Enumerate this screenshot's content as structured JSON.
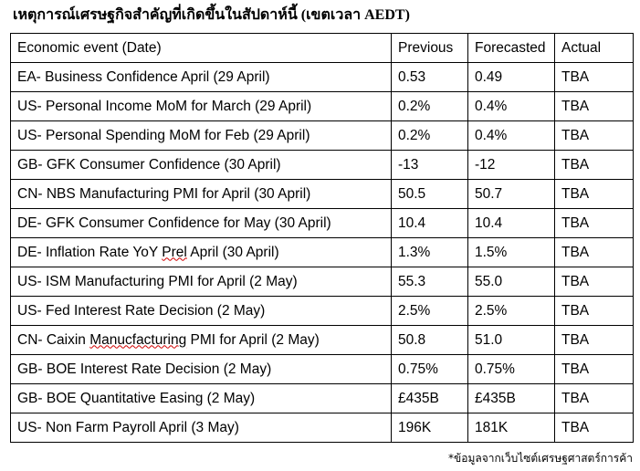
{
  "title": "เหตุการณ์เศรษฐกิจสำคัญที่เกิดขึ้นในสัปดาห์นี้ (เขตเวลา AEDT)",
  "table": {
    "headers": [
      "Economic event (Date)",
      "Previous",
      "Forecasted",
      "Actual"
    ],
    "rows": [
      {
        "event": "EA- Business Confidence April (29 April)",
        "previous": "0.53",
        "forecasted": "0.49",
        "actual": "TBA"
      },
      {
        "event": "US- Personal Income MoM for March (29 April)",
        "previous": "0.2%",
        "forecasted": "0.4%",
        "actual": "TBA"
      },
      {
        "event": "US- Personal Spending MoM for Feb (29 April)",
        "previous": "0.2%",
        "forecasted": "0.4%",
        "actual": "TBA"
      },
      {
        "event": "GB- GFK Consumer Confidence (30 April)",
        "previous": "-13",
        "forecasted": "-12",
        "actual": "TBA"
      },
      {
        "event": "CN- NBS Manufacturing PMI for April (30 April)",
        "previous": "50.5",
        "forecasted": "50.7",
        "actual": "TBA"
      },
      {
        "event": "DE- GFK Consumer Confidence for May (30 April)",
        "previous": "10.4",
        "forecasted": "10.4",
        "actual": "TBA"
      },
      {
        "event_parts": [
          "DE- Inflation Rate YoY ",
          "Prel",
          " April (30 April)"
        ],
        "previous": "1.3%",
        "forecasted": "1.5%",
        "actual": "TBA"
      },
      {
        "event": "US- ISM Manufacturing PMI for April (2 May)",
        "previous": "55.3",
        "forecasted": "55.0",
        "actual": "TBA"
      },
      {
        "event": "US- Fed Interest Rate Decision (2 May)",
        "previous": "2.5%",
        "forecasted": "2.5%",
        "actual": "TBA"
      },
      {
        "event_parts": [
          "CN- Caixin ",
          "Manucfacturing",
          " PMI for April (2 May)"
        ],
        "previous": "50.8",
        "forecasted": "51.0",
        "actual": "TBA"
      },
      {
        "event": "GB- BOE Interest Rate Decision (2 May)",
        "previous": "0.75%",
        "forecasted": "0.75%",
        "actual": "TBA"
      },
      {
        "event": "GB- BOE Quantitative Easing (2 May)",
        "previous": "£435B",
        "forecasted": "£435B",
        "actual": "TBA"
      },
      {
        "event": "US- Non Farm Payroll April (3 May)",
        "previous": "196K",
        "forecasted": "181K",
        "actual": "TBA"
      }
    ]
  },
  "footnote": "*ข้อมูลจากเว็บไซต์เศรษฐศาสตร์การค้า"
}
